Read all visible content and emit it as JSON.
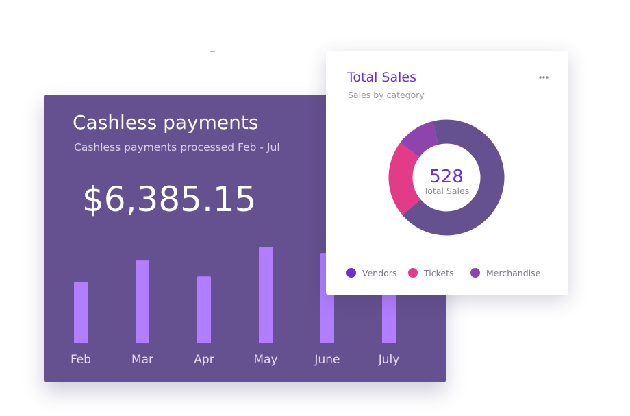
{
  "payments_card": {
    "title": "Cashless payments",
    "subtitle": "Cashless payments processed  Feb - Jul",
    "amount": "$6,385.15",
    "bar_color": "#b07eff",
    "background_color": "#65518f"
  },
  "sales_card": {
    "title": "Total Sales",
    "subtitle": "Sales by category",
    "menu_icon": "more-horizontal-icon",
    "center_value": "528",
    "center_label": "Total Sales"
  },
  "chart_data": [
    {
      "type": "bar",
      "title": "Cashless payments",
      "subtitle": "Cashless payments processed  Feb - Jul",
      "categories": [
        "Feb",
        "Mar",
        "Apr",
        "May",
        "June",
        "July"
      ],
      "values": [
        89,
        120,
        97,
        140,
        131,
        92
      ],
      "ylim": [
        0,
        140
      ],
      "grid": false,
      "xlabel": "",
      "ylabel": ""
    },
    {
      "type": "pie",
      "title": "Total Sales",
      "subtitle": "Sales by category",
      "donut": true,
      "total": 528,
      "categories": [
        "Vendors",
        "Tickets",
        "Merchandise"
      ],
      "values": [
        357,
        114,
        57
      ],
      "colors": [
        "#65518f",
        "#e23c88",
        "#8e44ad"
      ],
      "legend_colors": [
        "#6a2fd6",
        "#e23c88",
        "#8e44ad"
      ],
      "legend_position": "bottom"
    }
  ]
}
